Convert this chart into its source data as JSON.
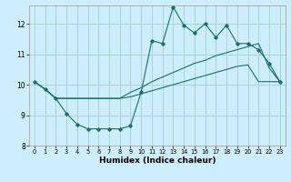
{
  "xlabel": "Humidex (Indice chaleur)",
  "bg_color": "#cceeff",
  "grid_color": "#aad4d4",
  "line_color": "#1a6e6e",
  "xlim": [
    -0.5,
    23.5
  ],
  "ylim": [
    8.0,
    12.6
  ],
  "yticks": [
    8,
    9,
    10,
    11,
    12
  ],
  "xticks": [
    0,
    1,
    2,
    3,
    4,
    5,
    6,
    7,
    8,
    9,
    10,
    11,
    12,
    13,
    14,
    15,
    16,
    17,
    18,
    19,
    20,
    21,
    22,
    23
  ],
  "jagged_x": [
    0,
    1,
    2,
    3,
    4,
    5,
    6,
    7,
    8,
    9,
    10,
    11,
    12,
    13,
    14,
    15,
    16,
    17,
    18,
    19,
    20,
    21,
    22,
    23
  ],
  "jagged_y": [
    10.1,
    9.85,
    9.55,
    9.05,
    8.7,
    8.55,
    8.55,
    8.55,
    8.55,
    8.65,
    9.75,
    11.45,
    11.35,
    12.55,
    11.95,
    11.7,
    12.0,
    11.55,
    11.95,
    11.35,
    11.35,
    11.15,
    10.7,
    10.1
  ],
  "smooth_lower_x": [
    0,
    1,
    2,
    3,
    4,
    5,
    6,
    7,
    8,
    9,
    10,
    11,
    12,
    13,
    14,
    15,
    16,
    17,
    18,
    19,
    20,
    21,
    22,
    23
  ],
  "smooth_lower_y": [
    10.1,
    9.85,
    9.55,
    9.55,
    9.55,
    9.55,
    9.55,
    9.55,
    9.55,
    9.6,
    9.7,
    9.8,
    9.9,
    10.0,
    10.1,
    10.2,
    10.3,
    10.4,
    10.5,
    10.6,
    10.65,
    10.1,
    10.1,
    10.1
  ],
  "smooth_upper_x": [
    0,
    1,
    2,
    3,
    4,
    5,
    6,
    7,
    8,
    9,
    10,
    11,
    12,
    13,
    14,
    15,
    16,
    17,
    18,
    19,
    20,
    21,
    22,
    23
  ],
  "smooth_upper_y": [
    10.1,
    9.85,
    9.55,
    9.55,
    9.55,
    9.55,
    9.55,
    9.55,
    9.55,
    9.75,
    9.9,
    10.1,
    10.25,
    10.4,
    10.55,
    10.7,
    10.8,
    10.95,
    11.05,
    11.15,
    11.25,
    11.35,
    10.55,
    10.1
  ]
}
